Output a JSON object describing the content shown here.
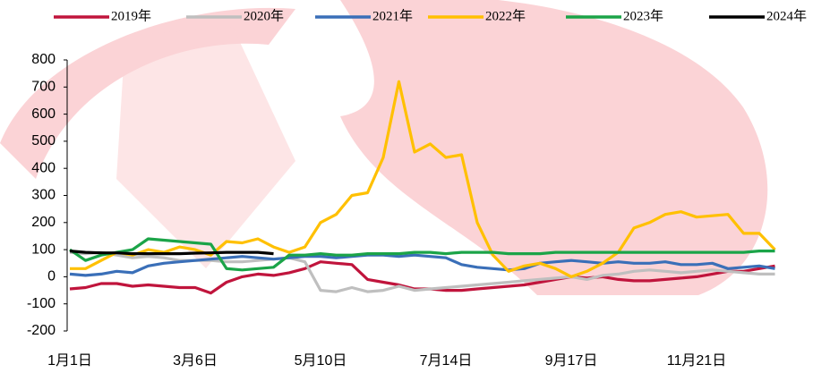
{
  "chart_data": {
    "type": "line",
    "categories": [
      "1月1日",
      null,
      null,
      null,
      null,
      null,
      null,
      null,
      "3月6日",
      null,
      null,
      null,
      null,
      null,
      null,
      null,
      "5月10日",
      null,
      null,
      null,
      null,
      null,
      null,
      null,
      "7月14日",
      null,
      null,
      null,
      null,
      null,
      null,
      null,
      "9月17日",
      null,
      null,
      null,
      null,
      null,
      null,
      null,
      "11月21日",
      null,
      null,
      null,
      null,
      null
    ],
    "ylim": [
      -200,
      800
    ],
    "yticks": [
      -200,
      -100,
      0,
      100,
      200,
      300,
      400,
      500,
      600,
      700,
      800
    ],
    "series": [
      {
        "name": "2019年",
        "color": "#c0143c",
        "values": [
          -45,
          -40,
          -25,
          -25,
          -35,
          -30,
          -35,
          -40,
          -40,
          -60,
          -20,
          0,
          10,
          5,
          15,
          30,
          55,
          50,
          45,
          -10,
          -20,
          -30,
          -45,
          -45,
          -50,
          -50,
          -45,
          -40,
          -35,
          -30,
          -20,
          -10,
          0,
          -5,
          0,
          -10,
          -15,
          -15,
          -10,
          -5,
          0,
          10,
          20,
          20,
          30,
          40
        ]
      },
      {
        "name": "2020年",
        "color": "#bfbfbf",
        "values": [
          90,
          85,
          90,
          80,
          70,
          75,
          70,
          60,
          60,
          60,
          55,
          55,
          60,
          65,
          70,
          55,
          -50,
          -55,
          -40,
          -55,
          -50,
          -35,
          -50,
          -45,
          -40,
          -35,
          -30,
          -25,
          -20,
          -15,
          -10,
          -5,
          0,
          -10,
          5,
          10,
          20,
          25,
          20,
          15,
          20,
          25,
          20,
          15,
          10,
          10
        ]
      },
      {
        "name": "2021年",
        "color": "#3a6fb8",
        "values": [
          10,
          5,
          10,
          20,
          15,
          40,
          50,
          55,
          60,
          65,
          70,
          75,
          70,
          65,
          70,
          75,
          75,
          70,
          75,
          80,
          80,
          75,
          80,
          75,
          70,
          45,
          35,
          30,
          25,
          30,
          50,
          55,
          60,
          55,
          50,
          55,
          50,
          50,
          55,
          45,
          45,
          50,
          30,
          35,
          40,
          30
        ]
      },
      {
        "name": "2022年",
        "color": "#ffc000",
        "values": [
          30,
          30,
          60,
          90,
          80,
          100,
          90,
          110,
          100,
          80,
          130,
          125,
          140,
          110,
          90,
          110,
          200,
          230,
          300,
          310,
          440,
          720,
          460,
          490,
          440,
          450,
          200,
          80,
          20,
          40,
          50,
          30,
          0,
          20,
          50,
          90,
          180,
          200,
          230,
          240,
          220,
          225,
          230,
          160,
          160,
          100
        ]
      },
      {
        "name": "2023年",
        "color": "#1ba448",
        "values": [
          100,
          60,
          80,
          90,
          100,
          140,
          135,
          130,
          125,
          120,
          30,
          25,
          30,
          35,
          80,
          80,
          85,
          80,
          80,
          85,
          85,
          85,
          90,
          90,
          85,
          90,
          90,
          90,
          85,
          85,
          85,
          90,
          90,
          90,
          90,
          90,
          90,
          90,
          90,
          90,
          90,
          90,
          90,
          90,
          95,
          95
        ]
      },
      {
        "name": "2024年",
        "color": "#000000",
        "values": [
          95,
          90,
          88,
          88,
          85,
          85,
          85,
          85,
          87,
          88,
          90,
          90,
          90,
          85,
          null,
          null,
          null,
          null,
          null,
          null,
          null,
          null,
          null,
          null,
          null,
          null,
          null,
          null,
          null,
          null,
          null,
          null,
          null,
          null,
          null,
          null,
          null,
          null,
          null,
          null,
          null,
          null,
          null,
          null,
          null,
          null
        ]
      }
    ]
  }
}
